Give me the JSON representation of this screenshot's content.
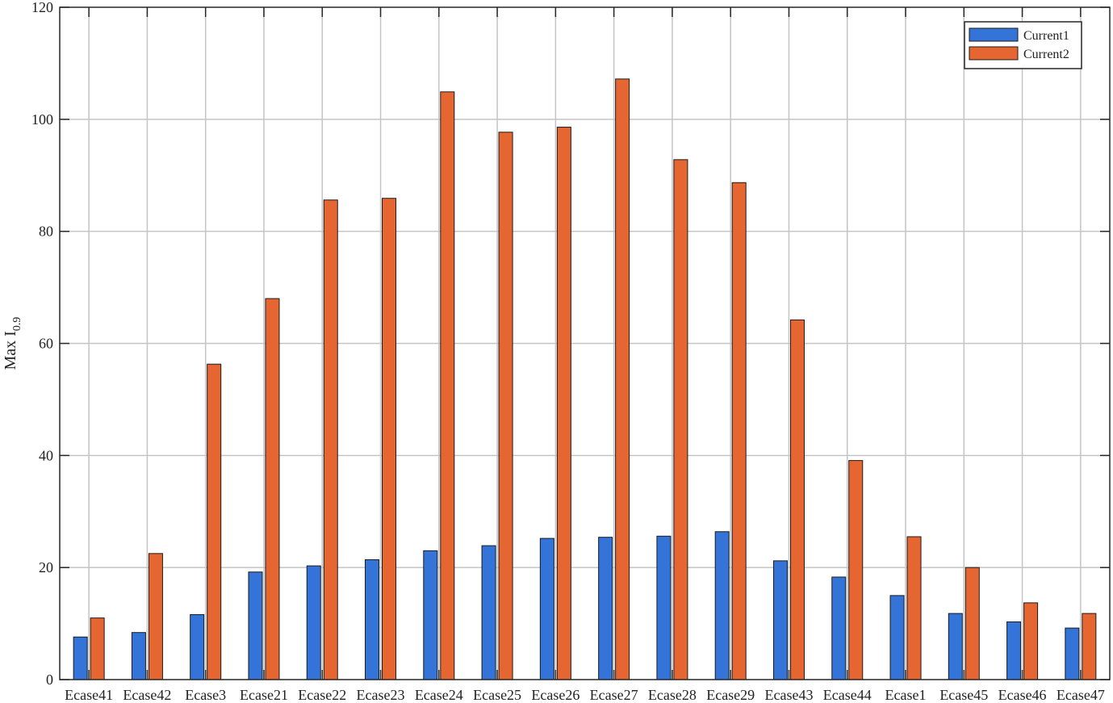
{
  "chart_data": {
    "type": "bar",
    "title": "",
    "xlabel": "",
    "ylabel": "Max I",
    "ylabel_subscript": "0.9",
    "ylim": [
      0,
      120
    ],
    "yticks": [
      0,
      20,
      40,
      60,
      80,
      100,
      120
    ],
    "grid": true,
    "legend_position": "top-right",
    "categories": [
      "Ecase41",
      "Ecase42",
      "Ecase3",
      "Ecase21",
      "Ecase22",
      "Ecase23",
      "Ecase24",
      "Ecase25",
      "Ecase26",
      "Ecase27",
      "Ecase28",
      "Ecase29",
      "Ecase43",
      "Ecase44",
      "Ecase1",
      "Ecase45",
      "Ecase46",
      "Ecase47"
    ],
    "series": [
      {
        "name": "Current1",
        "color": "#3474d8",
        "values": [
          7.6,
          8.4,
          11.6,
          19.2,
          20.3,
          21.4,
          23.0,
          23.9,
          25.2,
          25.4,
          25.6,
          26.4,
          21.2,
          18.3,
          15.0,
          11.8,
          10.3,
          9.2
        ]
      },
      {
        "name": "Current2",
        "color": "#e66632",
        "values": [
          11.0,
          22.5,
          56.3,
          68.0,
          85.6,
          85.9,
          104.9,
          97.7,
          98.6,
          107.2,
          92.8,
          88.7,
          64.2,
          39.1,
          25.5,
          20.0,
          13.7,
          11.8
        ]
      }
    ]
  }
}
